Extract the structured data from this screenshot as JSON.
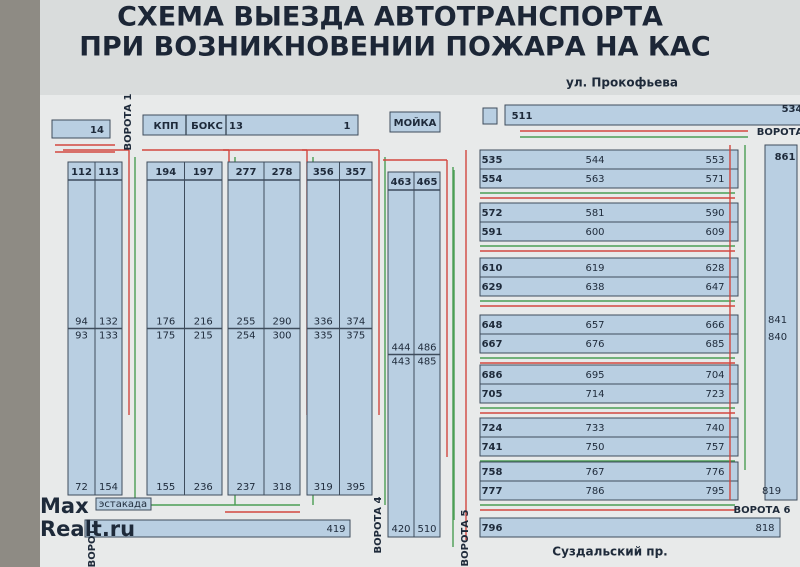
{
  "title": [
    "СХЕМА ВЫЕЗДА АВТОТРАНСПОРТА",
    "ПРИ ВОЗНИКНОВЕНИИ ПОЖАРА НА КАС"
  ],
  "street_top": "ул. Прокофьева",
  "street_bottom": "Суздальский пр.",
  "gates": {
    "gate1": "ВОРОТА 1",
    "gate4": "ВОРОТА 4",
    "gate5": "ВОРОТА 5",
    "gate6": "ВОРОТА 6",
    "gate_top_right": "ВОРОТА",
    "gate_bottom_left": "ВОРОТ"
  },
  "top_boxes": {
    "box14": "14",
    "kpp": "КПП",
    "boks": "БОКС",
    "box13": "13",
    "box1": "1",
    "moika": "МОЙКА",
    "left_511": "511",
    "right_534": "534"
  },
  "estakada": "эстакада",
  "columns": [
    {
      "top": [
        "112",
        "113"
      ],
      "middle": [
        [
          "94",
          "132"
        ],
        [
          "93",
          "133"
        ]
      ],
      "bottom": [
        "72",
        "154"
      ]
    },
    {
      "top": [
        "194",
        "197"
      ],
      "middle": [
        [
          "176",
          "216"
        ],
        [
          "175",
          "215"
        ]
      ],
      "bottom": [
        "155",
        "236"
      ]
    },
    {
      "top": [
        "277",
        "278"
      ],
      "middle": [
        [
          "255",
          "290"
        ],
        [
          "254",
          "300"
        ]
      ],
      "bottom": [
        "237",
        "318"
      ]
    },
    {
      "top": [
        "356",
        "357"
      ],
      "middle": [
        [
          "336",
          "374"
        ],
        [
          "335",
          "375"
        ]
      ],
      "bottom": [
        "319",
        "395"
      ]
    },
    {
      "top": [
        "463",
        "465"
      ],
      "middle": [
        [
          "444",
          "486"
        ],
        [
          "443",
          "485"
        ]
      ],
      "bottom": [
        "420",
        "510"
      ]
    }
  ],
  "rows": [
    [
      "535",
      "544",
      "553"
    ],
    [
      "554",
      "563",
      "571"
    ],
    [
      "572",
      "581",
      "590"
    ],
    [
      "591",
      "600",
      "609"
    ],
    [
      "610",
      "619",
      "628"
    ],
    [
      "629",
      "638",
      "647"
    ],
    [
      "648",
      "657",
      "666"
    ],
    [
      "667",
      "676",
      "685"
    ],
    [
      "686",
      "695",
      "704"
    ],
    [
      "705",
      "714",
      "723"
    ],
    [
      "724",
      "733",
      "740"
    ],
    [
      "741",
      "750",
      "757"
    ],
    [
      "758",
      "767",
      "776"
    ],
    [
      "777",
      "786",
      "795"
    ]
  ],
  "right_column": [
    "861",
    "841",
    "840",
    "819"
  ],
  "bottom_bars": {
    "bar419": "419",
    "left_796": "796",
    "right_818": "818"
  },
  "watermark": [
    "Max",
    "Realt.ru"
  ]
}
